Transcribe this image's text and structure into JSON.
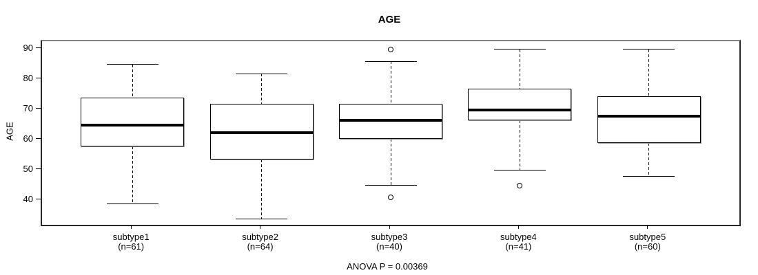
{
  "chart_data": {
    "type": "boxplot",
    "title": "AGE",
    "ylabel": "AGE",
    "annotation": "ANOVA P = 0.00369",
    "y_ticks": [
      40,
      50,
      60,
      70,
      80,
      90
    ],
    "ylim": [
      32,
      92.7
    ],
    "grid": false,
    "legend": "none",
    "colors": {
      "line": "#000000",
      "box_fill": "#ffffff",
      "frame_top": "#808080",
      "frame": "#262626",
      "shadow": "#9a9a9a"
    },
    "groups": [
      {
        "label": "subtype1",
        "count_label": "(n=61)",
        "whisker_low": 39,
        "q1": 58,
        "median": 65,
        "q3": 74,
        "whisker_high": 85,
        "outliers": []
      },
      {
        "label": "subtype2",
        "count_label": "(n=64)",
        "whisker_low": 34,
        "q1": 53.5,
        "median": 62.5,
        "q3": 72,
        "whisker_high": 82,
        "outliers": []
      },
      {
        "label": "subtype3",
        "count_label": "(n=40)",
        "whisker_low": 45,
        "q1": 60.5,
        "median": 66.5,
        "q3": 72,
        "whisker_high": 86,
        "outliers": [
          90,
          41
        ]
      },
      {
        "label": "subtype4",
        "count_label": "(n=41)",
        "whisker_low": 50,
        "q1": 66.5,
        "median": 70,
        "q3": 77,
        "whisker_high": 90,
        "outliers": [
          45
        ]
      },
      {
        "label": "subtype5",
        "count_label": "(n=60)",
        "whisker_low": 48,
        "q1": 59,
        "median": 68,
        "q3": 74.5,
        "whisker_high": 90,
        "outliers": []
      }
    ]
  }
}
